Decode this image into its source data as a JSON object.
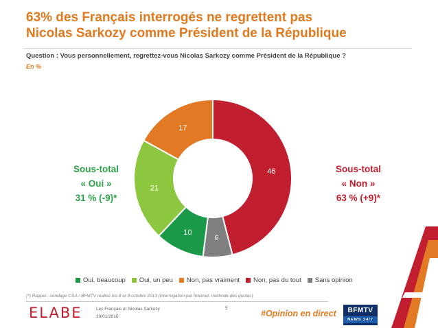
{
  "header": {
    "title_line1": "63% des Français interrogés ne regrettent pas",
    "title_line2": "Nicolas Sarkozy comme Président de la République",
    "question": "Question : Vous personnellement, regrettez-vous Nicolas Sarkozy comme Président de la République ?",
    "unit": "En %"
  },
  "subtotals": {
    "oui": {
      "line1": "Sous-total",
      "line2": "« Oui »",
      "line3": "31 % (-9)*",
      "color": "#2ca14a"
    },
    "non": {
      "line1": "Sous-total",
      "line2": "« Non »",
      "line3": "63 % (+9)*",
      "color": "#c0202e"
    }
  },
  "chart_data": {
    "type": "pie",
    "donut": true,
    "title": "",
    "legend_position": "bottom",
    "start_angle_deg": 0,
    "direction": "clockwise",
    "slices": [
      {
        "label": "Non, pas du tout",
        "value": 46,
        "color": "#c11f30"
      },
      {
        "label": "Sans opinion",
        "value": 6,
        "color": "#7f7f7f"
      },
      {
        "label": "Oui, beaucoup",
        "value": 10,
        "color": "#1a9a48"
      },
      {
        "label": "Oui, un peu",
        "value": 21,
        "color": "#8dc63f"
      },
      {
        "label": "Non, pas vraiment",
        "value": 17,
        "color": "#e27a25"
      }
    ],
    "legend_order": [
      "Oui, beaucoup",
      "Oui, un peu",
      "Non, pas vraiment",
      "Non, pas du tout",
      "Sans opinion"
    ]
  },
  "footnote": "(*) Rappel : sondage CSA / BFMTV réalisé les 8 et 9 octobre 2013 (interrogation par Internet, méthode des quotas)",
  "footer": {
    "logo": "ELABE",
    "study": "Les Français et Nicolas Sarkozy",
    "date": "20/01/2016",
    "page": "5",
    "hashtag": "#Opinion en direct",
    "bfm_top": "BFMTV",
    "bfm_bottom": "NEWS 24/7"
  }
}
